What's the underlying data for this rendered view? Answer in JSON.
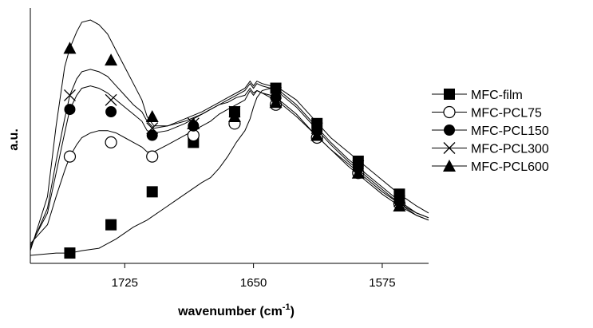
{
  "chart_data": {
    "type": "line",
    "xlabel": "wavenumber (cm",
    "xlabel_sup": "-1",
    "xlabel_close": ")",
    "ylabel": "a.u.",
    "x_reversed": true,
    "xlim": [
      1780,
      1548
    ],
    "ylim": [
      0,
      1
    ],
    "x_ticks": [
      1725,
      1650,
      1575
    ],
    "x_tick_labels": [
      "1725",
      "1650",
      "1575"
    ],
    "grid": false,
    "legend_position": "right",
    "series": [
      {
        "name": "MFC-film",
        "marker": "filled-square",
        "x": [
          1780,
          1765,
          1757,
          1750,
          1740,
          1730,
          1720,
          1712,
          1700,
          1690,
          1680,
          1675,
          1670,
          1665,
          1660,
          1655,
          1652,
          1650,
          1648,
          1645,
          1640,
          1635,
          1625,
          1615,
          1605,
          1595,
          1585,
          1575,
          1565,
          1555,
          1548
        ],
        "y": [
          0.0,
          0.01,
          0.01,
          0.02,
          0.03,
          0.07,
          0.12,
          0.15,
          0.21,
          0.26,
          0.31,
          0.33,
          0.37,
          0.42,
          0.48,
          0.53,
          0.58,
          0.63,
          0.67,
          0.7,
          0.71,
          0.71,
          0.66,
          0.58,
          0.5,
          0.44,
          0.38,
          0.32,
          0.26,
          0.21,
          0.18
        ],
        "marker_x": [
          1757,
          1733,
          1709,
          1685,
          1661,
          1637,
          1613,
          1589,
          1565
        ],
        "marker_y": [
          0.01,
          0.13,
          0.27,
          0.48,
          0.61,
          0.71,
          0.56,
          0.4,
          0.26
        ]
      },
      {
        "name": "MFC-PCL75",
        "marker": "open-circle",
        "x": [
          1780,
          1770,
          1765,
          1760,
          1757,
          1753,
          1750,
          1745,
          1740,
          1735,
          1730,
          1725,
          1720,
          1715,
          1712,
          1708,
          1700,
          1690,
          1680,
          1675,
          1670,
          1665,
          1660,
          1655,
          1652,
          1650,
          1648,
          1645,
          1640,
          1635,
          1625,
          1615,
          1605,
          1595,
          1585,
          1575,
          1565,
          1555,
          1548
        ],
        "y": [
          0.05,
          0.13,
          0.25,
          0.36,
          0.42,
          0.47,
          0.5,
          0.52,
          0.53,
          0.53,
          0.52,
          0.5,
          0.48,
          0.46,
          0.44,
          0.44,
          0.47,
          0.51,
          0.55,
          0.57,
          0.6,
          0.62,
          0.64,
          0.66,
          0.7,
          0.68,
          0.7,
          0.69,
          0.68,
          0.66,
          0.6,
          0.52,
          0.45,
          0.39,
          0.33,
          0.27,
          0.22,
          0.17,
          0.15
        ],
        "marker_x": [
          1757,
          1733,
          1709,
          1685,
          1661,
          1637,
          1613,
          1589,
          1565
        ],
        "marker_y": [
          0.42,
          0.48,
          0.42,
          0.51,
          0.56,
          0.64,
          0.5,
          0.35,
          0.22
        ]
      },
      {
        "name": "MFC-PCL150",
        "marker": "filled-circle",
        "x": [
          1780,
          1770,
          1765,
          1760,
          1757,
          1753,
          1750,
          1745,
          1740,
          1735,
          1730,
          1725,
          1720,
          1715,
          1712,
          1708,
          1700,
          1690,
          1680,
          1675,
          1670,
          1665,
          1660,
          1655,
          1652,
          1650,
          1648,
          1645,
          1640,
          1635,
          1625,
          1615,
          1605,
          1595,
          1585,
          1575,
          1565,
          1555,
          1548
        ],
        "y": [
          0.04,
          0.18,
          0.35,
          0.52,
          0.62,
          0.68,
          0.71,
          0.72,
          0.71,
          0.69,
          0.66,
          0.63,
          0.6,
          0.57,
          0.53,
          0.52,
          0.53,
          0.56,
          0.6,
          0.62,
          0.64,
          0.66,
          0.68,
          0.7,
          0.73,
          0.71,
          0.73,
          0.72,
          0.71,
          0.69,
          0.63,
          0.55,
          0.47,
          0.4,
          0.34,
          0.28,
          0.22,
          0.18,
          0.16
        ],
        "marker_x": [
          1757,
          1733,
          1709,
          1685,
          1661,
          1637,
          1613,
          1589,
          1565
        ],
        "marker_y": [
          0.62,
          0.61,
          0.51,
          0.55,
          0.6,
          0.67,
          0.53,
          0.37,
          0.23
        ]
      },
      {
        "name": "MFC-PCL300",
        "marker": "cross",
        "x": [
          1780,
          1770,
          1765,
          1760,
          1757,
          1753,
          1750,
          1745,
          1740,
          1735,
          1730,
          1725,
          1720,
          1715,
          1712,
          1708,
          1700,
          1690,
          1680,
          1675,
          1670,
          1665,
          1660,
          1655,
          1652,
          1650,
          1648,
          1645,
          1640,
          1635,
          1625,
          1615,
          1605,
          1595,
          1585,
          1575,
          1565,
          1555,
          1548
        ],
        "y": [
          0.03,
          0.2,
          0.4,
          0.58,
          0.68,
          0.75,
          0.78,
          0.79,
          0.78,
          0.76,
          0.72,
          0.68,
          0.64,
          0.61,
          0.57,
          0.54,
          0.55,
          0.58,
          0.61,
          0.63,
          0.65,
          0.67,
          0.69,
          0.71,
          0.74,
          0.72,
          0.74,
          0.73,
          0.72,
          0.7,
          0.64,
          0.56,
          0.48,
          0.41,
          0.35,
          0.29,
          0.23,
          0.18,
          0.16
        ],
        "marker_x": [
          1757,
          1733,
          1709,
          1685,
          1661,
          1637,
          1613,
          1589,
          1565
        ],
        "marker_y": [
          0.68,
          0.66,
          0.54,
          0.56,
          0.61,
          0.69,
          0.54,
          0.38,
          0.23
        ]
      },
      {
        "name": "MFC-PCL600",
        "marker": "filled-triangle",
        "x": [
          1780,
          1770,
          1765,
          1760,
          1757,
          1753,
          1750,
          1745,
          1740,
          1735,
          1730,
          1725,
          1720,
          1715,
          1712,
          1708,
          1700,
          1690,
          1680,
          1675,
          1670,
          1665,
          1660,
          1655,
          1652,
          1650,
          1648,
          1645,
          1640,
          1635,
          1625,
          1615,
          1605,
          1595,
          1585,
          1575,
          1565,
          1555,
          1548
        ],
        "y": [
          0.02,
          0.25,
          0.55,
          0.8,
          0.88,
          0.95,
          0.99,
          1.0,
          0.98,
          0.94,
          0.87,
          0.8,
          0.73,
          0.66,
          0.59,
          0.55,
          0.55,
          0.57,
          0.6,
          0.62,
          0.64,
          0.65,
          0.67,
          0.68,
          0.71,
          0.69,
          0.7,
          0.69,
          0.67,
          0.65,
          0.59,
          0.52,
          0.45,
          0.38,
          0.32,
          0.26,
          0.21,
          0.17,
          0.15
        ],
        "marker_x": [
          1757,
          1733,
          1709,
          1685,
          1661,
          1637,
          1613,
          1589,
          1565
        ],
        "marker_y": [
          0.88,
          0.83,
          0.59,
          0.56,
          0.59,
          0.65,
          0.51,
          0.35,
          0.21
        ]
      }
    ]
  }
}
